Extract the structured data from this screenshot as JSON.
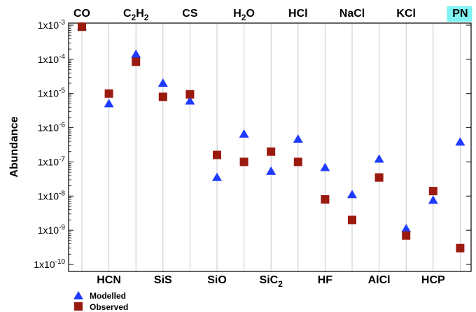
{
  "chart_data": {
    "type": "scatter",
    "y_scale": "log",
    "ylabel": "Abundance",
    "ylim_exp": [
      -10,
      -3
    ],
    "y_tick_mantissa": "1x10",
    "y_tick_exponents": [
      "-3",
      "-4",
      "-5",
      "-6",
      "-7",
      "-8",
      "-9",
      "-10"
    ],
    "grid": "vertical",
    "legend_position": "bottom-left",
    "categories": [
      {
        "base": "CO",
        "sub": "",
        "tail": "",
        "label_pos": "top"
      },
      {
        "base": "HCN",
        "sub": "",
        "tail": "",
        "label_pos": "bottom"
      },
      {
        "base": "C",
        "sub": "2",
        "tail": "H",
        "sub2": "2",
        "label_pos": "top"
      },
      {
        "base": "SiS",
        "sub": "",
        "tail": "",
        "label_pos": "bottom"
      },
      {
        "base": "CS",
        "sub": "",
        "tail": "",
        "label_pos": "top"
      },
      {
        "base": "SiO",
        "sub": "",
        "tail": "",
        "label_pos": "bottom"
      },
      {
        "base": "H",
        "sub": "2",
        "tail": "O",
        "label_pos": "top"
      },
      {
        "base": "SiC",
        "sub": "2",
        "tail": "",
        "label_pos": "bottom"
      },
      {
        "base": "HCl",
        "sub": "",
        "tail": "",
        "label_pos": "top"
      },
      {
        "base": "HF",
        "sub": "",
        "tail": "",
        "label_pos": "bottom"
      },
      {
        "base": "NaCl",
        "sub": "",
        "tail": "",
        "label_pos": "top"
      },
      {
        "base": "AlCl",
        "sub": "",
        "tail": "",
        "label_pos": "bottom"
      },
      {
        "base": "KCl",
        "sub": "",
        "tail": "",
        "label_pos": "top"
      },
      {
        "base": "HCP",
        "sub": "",
        "tail": "",
        "label_pos": "bottom"
      },
      {
        "base": "PN",
        "sub": "",
        "tail": "",
        "label_pos": "top",
        "highlight": "#7ef3f3"
      }
    ],
    "series": [
      {
        "name": "Modelled",
        "marker": "triangle",
        "color": "#1f3bff",
        "values": [
          0.0009,
          5e-06,
          0.00014,
          2e-05,
          6e-06,
          3.5e-08,
          6.5e-07,
          5.3e-08,
          4.6e-07,
          6.8e-08,
          1.1e-08,
          1.2e-07,
          1.1e-09,
          7.5e-09,
          3.8e-07
        ]
      },
      {
        "name": "Observed",
        "marker": "square",
        "color": "#9b1a10",
        "values": [
          0.0009,
          1e-05,
          8.5e-05,
          8e-06,
          9.5e-06,
          1.6e-07,
          1e-07,
          2e-07,
          1e-07,
          8e-09,
          2e-09,
          3.5e-08,
          7e-10,
          1.4e-08,
          3e-10
        ]
      }
    ]
  }
}
